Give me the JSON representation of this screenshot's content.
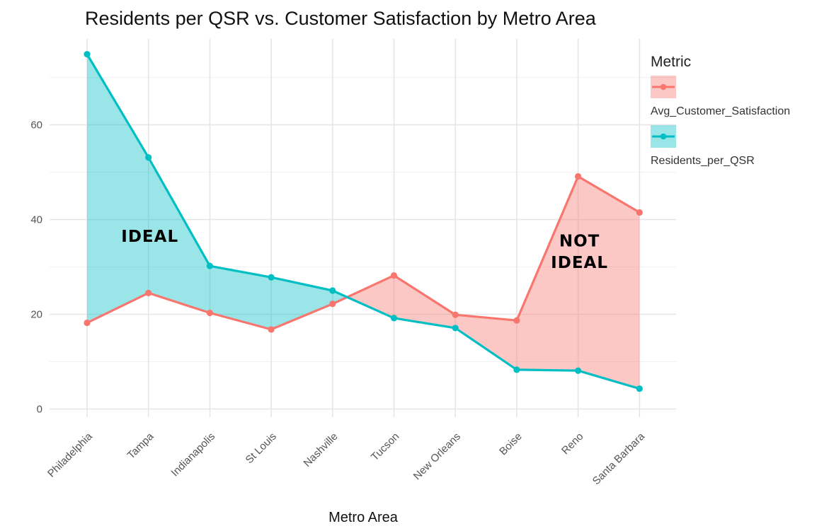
{
  "chart_data": {
    "type": "line",
    "title": "Residents per QSR vs. Customer Satisfaction by Metro Area",
    "xlabel": "Metro Area",
    "ylabel": "",
    "categories": [
      "Philadelphia",
      "Tampa",
      "Indianapolis",
      "St Louis",
      "Nashville",
      "Tucson",
      "New Orleans",
      "Boise",
      "Reno",
      "Santa Barbara"
    ],
    "ylim": [
      -2,
      78
    ],
    "yticks": [
      0,
      20,
      40,
      60
    ],
    "grid": true,
    "legend": {
      "title": "Metric",
      "position": "right"
    },
    "series": [
      {
        "name": "Avg_Customer_Satisfaction",
        "color": "#F8766D",
        "values": [
          18.2,
          24.5,
          20.3,
          16.8,
          22.2,
          28.2,
          19.9,
          18.7,
          49.1,
          41.5
        ]
      },
      {
        "name": "Residents_per_QSR",
        "color": "#00BFC4",
        "values": [
          74.9,
          53.1,
          30.2,
          27.8,
          25.0,
          19.2,
          17.1,
          8.3,
          8.1,
          4.3
        ]
      }
    ],
    "fill_between": {
      "series_above_color": "#00BFC4",
      "series_below_color": "#F8766D",
      "opacity": 0.4
    },
    "annotations": [
      {
        "text": "IDEAL",
        "x": "Tampa",
        "y": 36.5
      },
      {
        "text": "NOT",
        "x": "Reno",
        "y": 35.5
      },
      {
        "text": "IDEAL",
        "x": "Reno",
        "y": 31.0
      }
    ]
  }
}
